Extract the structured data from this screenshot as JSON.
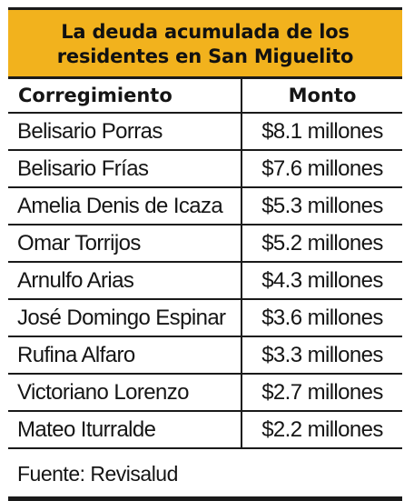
{
  "title": {
    "line1": "La deuda acumulada de los",
    "line2": "residentes en San Miguelito"
  },
  "table": {
    "headers": [
      "Corregimiento",
      "Monto"
    ],
    "rows": [
      {
        "corregimiento": "Belisario Porras",
        "monto": "$8.1 millones"
      },
      {
        "corregimiento": "Belisario Frías",
        "monto": "$7.6 millones"
      },
      {
        "corregimiento": "Amelia Denis de Icaza",
        "monto": "$5.3 millones"
      },
      {
        "corregimiento": "Omar Torrijos",
        "monto": "$5.2 millones"
      },
      {
        "corregimiento": "Arnulfo Arias",
        "monto": "$4.3 millones"
      },
      {
        "corregimiento": "José Domingo Espinar",
        "monto": "$3.6 millones"
      },
      {
        "corregimiento": "Rufina Alfaro",
        "monto": "$3.3 millones"
      },
      {
        "corregimiento": "Victoriano Lorenzo",
        "monto": "$2.7 millones"
      },
      {
        "corregimiento": "Mateo Iturralde",
        "monto": "$2.2 millones"
      }
    ]
  },
  "source": "Fuente: Revisalud",
  "colors": {
    "title_background": "#f2b21d",
    "rules": "#1a1a1a"
  }
}
